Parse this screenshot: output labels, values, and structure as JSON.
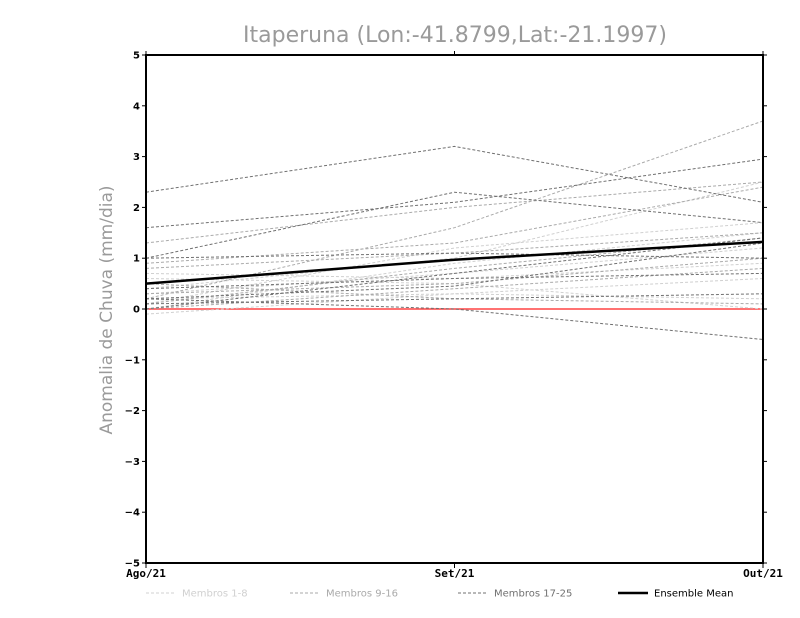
{
  "chart_data": {
    "type": "line",
    "title": "Itaperuna (Lon:-41.8799,Lat:-21.1997)",
    "ylabel": "Anomalia de Chuva (mm/dia)",
    "xlabel": "",
    "categories": [
      "Ago/21",
      "Set/21",
      "Out/21"
    ],
    "ylim": [
      -5,
      5
    ],
    "yticks": [
      -5,
      -4,
      -3,
      -2,
      -1,
      0,
      1,
      2,
      3,
      4,
      5
    ],
    "grid": false,
    "legend_position": "bottom",
    "zero_line": {
      "value": 0,
      "color": "#ff4444"
    },
    "groups": [
      {
        "key": "g1",
        "name": "Membros 1-8",
        "color": "#d0d0d0",
        "dashed": true
      },
      {
        "key": "g2",
        "name": "Membros 9-16",
        "color": "#aaaaaa",
        "dashed": true
      },
      {
        "key": "g3",
        "name": "Membros 17-25",
        "color": "#707070",
        "dashed": true
      },
      {
        "key": "mean",
        "name": "Ensemble Mean",
        "color": "#000000",
        "dashed": false
      }
    ],
    "series": [
      {
        "group": "g1",
        "values": [
          0.1,
          1.2,
          1.7
        ]
      },
      {
        "group": "g1",
        "values": [
          0.0,
          0.9,
          1.5
        ]
      },
      {
        "group": "g1",
        "values": [
          0.7,
          0.6,
          0.9
        ]
      },
      {
        "group": "g1",
        "values": [
          0.2,
          0.3,
          0.2
        ]
      },
      {
        "group": "g1",
        "values": [
          -0.1,
          0.3,
          0.6
        ]
      },
      {
        "group": "g1",
        "values": [
          0.4,
          1.0,
          2.5
        ]
      },
      {
        "group": "g1",
        "values": [
          0.6,
          0.5,
          0.0
        ]
      },
      {
        "group": "g1",
        "values": [
          0.3,
          0.7,
          1.2
        ]
      },
      {
        "group": "g2",
        "values": [
          0.2,
          1.6,
          3.7
        ]
      },
      {
        "group": "g2",
        "values": [
          1.3,
          2.0,
          2.5
        ]
      },
      {
        "group": "g2",
        "values": [
          0.8,
          1.1,
          1.5
        ]
      },
      {
        "group": "g2",
        "values": [
          0.0,
          0.4,
          0.8
        ]
      },
      {
        "group": "g2",
        "values": [
          0.1,
          0.8,
          1.4
        ]
      },
      {
        "group": "g2",
        "values": [
          0.5,
          0.2,
          0.1
        ]
      },
      {
        "group": "g2",
        "values": [
          0.9,
          1.3,
          2.4
        ]
      },
      {
        "group": "g2",
        "values": [
          0.3,
          0.5,
          1.0
        ]
      },
      {
        "group": "g3",
        "values": [
          2.3,
          3.2,
          2.1
        ]
      },
      {
        "group": "g3",
        "values": [
          1.6,
          2.1,
          2.95
        ]
      },
      {
        "group": "g3",
        "values": [
          1.0,
          2.3,
          1.7
        ]
      },
      {
        "group": "g3",
        "values": [
          0.2,
          0.0,
          -0.6
        ]
      },
      {
        "group": "g3",
        "values": [
          0.0,
          0.7,
          1.4
        ]
      },
      {
        "group": "g3",
        "values": [
          0.4,
          0.6,
          0.7
        ]
      },
      {
        "group": "g3",
        "values": [
          0.1,
          0.2,
          0.3
        ]
      },
      {
        "group": "g3",
        "values": [
          1.0,
          1.1,
          1.0
        ]
      },
      {
        "group": "g3",
        "values": [
          0.2,
          0.45,
          1.3
        ]
      },
      {
        "group": "mean",
        "values": [
          0.5,
          0.97,
          1.32
        ]
      }
    ]
  }
}
